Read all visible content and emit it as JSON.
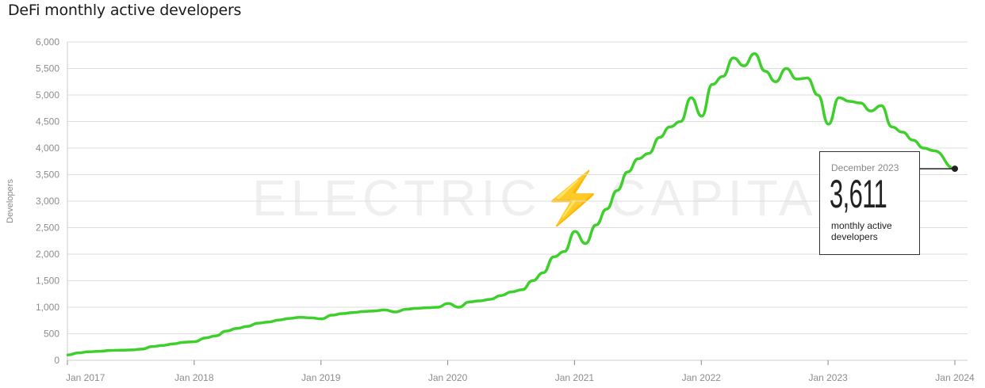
{
  "title": "DeFi monthly active developers",
  "y_axis_label": "Developers",
  "watermark": "ELECTRIC⚡CAPITAL",
  "callout": {
    "date": "December 2023",
    "value": "3,611",
    "description": "monthly active developers"
  },
  "colors": {
    "line": "#3fcf2c",
    "grid": "#dddddd",
    "axis": "#cccccc",
    "tick_text": "#8c8c8c",
    "marker": "#222222"
  },
  "chart_data": {
    "type": "line",
    "title": "DeFi monthly active developers",
    "xlabel": "",
    "ylabel": "Developers",
    "ylim": [
      0,
      6000
    ],
    "yticks": [
      0,
      500,
      1000,
      1500,
      2000,
      2500,
      3000,
      3500,
      4000,
      4500,
      5000,
      5500,
      6000
    ],
    "ytick_labels": [
      "0",
      "500",
      "1,000",
      "1,500",
      "2,000",
      "2,500",
      "3,000",
      "3,500",
      "4,000",
      "4,500",
      "5,000",
      "5,500",
      "6,000"
    ],
    "xtick_labels": [
      "Jan 2017",
      "Jan 2018",
      "Jan 2019",
      "Jan 2020",
      "Jan 2021",
      "Jan 2022",
      "Jan 2023",
      "Jan 2024"
    ],
    "grid": true,
    "legend": null,
    "annotation": {
      "x": "2023-12",
      "y": 3611,
      "text": "December 2023 3,611 monthly active developers"
    },
    "series": [
      {
        "name": "DeFi monthly active developers",
        "x": [
          "2017-01",
          "2017-02",
          "2017-03",
          "2017-04",
          "2017-05",
          "2017-06",
          "2017-07",
          "2017-08",
          "2017-09",
          "2017-10",
          "2017-11",
          "2017-12",
          "2018-01",
          "2018-02",
          "2018-03",
          "2018-04",
          "2018-05",
          "2018-06",
          "2018-07",
          "2018-08",
          "2018-09",
          "2018-10",
          "2018-11",
          "2018-12",
          "2019-01",
          "2019-02",
          "2019-03",
          "2019-04",
          "2019-05",
          "2019-06",
          "2019-07",
          "2019-08",
          "2019-09",
          "2019-10",
          "2019-11",
          "2019-12",
          "2020-01",
          "2020-02",
          "2020-03",
          "2020-04",
          "2020-05",
          "2020-06",
          "2020-07",
          "2020-08",
          "2020-09",
          "2020-10",
          "2020-11",
          "2020-12",
          "2021-01",
          "2021-02",
          "2021-03",
          "2021-04",
          "2021-05",
          "2021-06",
          "2021-07",
          "2021-08",
          "2021-09",
          "2021-10",
          "2021-11",
          "2021-12",
          "2022-01",
          "2022-02",
          "2022-03",
          "2022-04",
          "2022-05",
          "2022-06",
          "2022-07",
          "2022-08",
          "2022-09",
          "2022-10",
          "2022-11",
          "2022-12",
          "2023-01",
          "2023-02",
          "2023-03",
          "2023-04",
          "2023-05",
          "2023-06",
          "2023-07",
          "2023-08",
          "2023-09",
          "2023-10",
          "2023-11",
          "2023-12"
        ],
        "values": [
          100,
          140,
          160,
          170,
          185,
          190,
          195,
          210,
          260,
          280,
          310,
          340,
          350,
          420,
          460,
          550,
          600,
          640,
          700,
          720,
          760,
          790,
          810,
          800,
          780,
          850,
          880,
          900,
          920,
          930,
          950,
          910,
          960,
          980,
          990,
          1000,
          1070,
          1000,
          1100,
          1120,
          1150,
          1220,
          1290,
          1330,
          1500,
          1650,
          1950,
          2050,
          2430,
          2200,
          2550,
          2850,
          3200,
          3550,
          3800,
          3900,
          4200,
          4400,
          4500,
          4950,
          4600,
          5200,
          5350,
          5700,
          5550,
          5780,
          5450,
          5250,
          5500,
          5300,
          5320,
          5000,
          4450,
          4950,
          4880,
          4850,
          4700,
          4800,
          4400,
          4300,
          4150,
          4000,
          3950,
          3611
        ]
      }
    ]
  }
}
